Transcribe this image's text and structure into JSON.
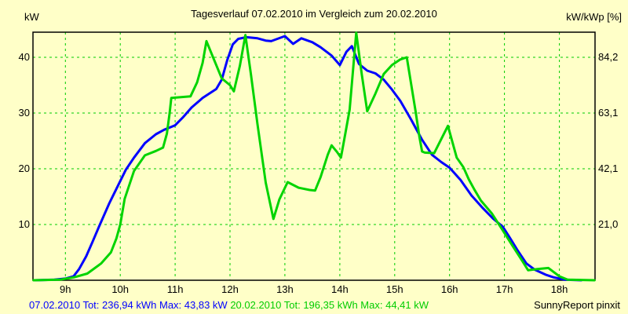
{
  "title": "Tagesverlauf 07.02.2010 im Vergleich zum 20.02.2010",
  "left_axis_unit": "kW",
  "right_axis_unit": "kW/kWp [%]",
  "footer": {
    "series1_stats": "07.02.2010 Tot: 236,94 kWh Max: 43,83 kW",
    "series2_stats": "20.02.2010 Tot: 196,35 kWh Max: 44,41 kW",
    "brand": "SunnyReport pinxit"
  },
  "colors": {
    "background": "#ffffc8",
    "grid_green": "#00cc00",
    "series1_blue": "#0000ff",
    "series2_green": "#00d400",
    "text_black": "#000000",
    "plot_border": "#000000"
  },
  "chart_data": {
    "type": "line",
    "title": "Tagesverlauf 07.02.2010 im Vergleich zum 20.02.2010",
    "xlabel_unit": "h",
    "ylabel_left": "kW",
    "ylabel_right": "kW/kWp [%]",
    "grid": true,
    "legend_position": "footer",
    "x_ticks": [
      "9h",
      "10h",
      "11h",
      "12h",
      "13h",
      "14h",
      "15h",
      "16h",
      "17h",
      "18h"
    ],
    "x_tick_hours": [
      9,
      10,
      11,
      12,
      13,
      14,
      15,
      16,
      17,
      18
    ],
    "left_ticks": [
      10,
      20,
      30,
      40
    ],
    "right_ticks": [
      "21,0",
      "42,1",
      "63,1",
      "84,2"
    ],
    "x_range_hours": [
      8.41,
      18.65
    ],
    "y_range_kw": [
      0,
      44.5
    ],
    "series": [
      {
        "name": "07.02.2010",
        "total_kwh": 236.94,
        "max_kw": 43.83,
        "points": [
          [
            8.45,
            0
          ],
          [
            8.8,
            0.1
          ],
          [
            9.0,
            0.3
          ],
          [
            9.15,
            0.7
          ],
          [
            9.25,
            2.0
          ],
          [
            9.38,
            4.3
          ],
          [
            9.5,
            7.0
          ],
          [
            9.63,
            10.0
          ],
          [
            9.8,
            13.8
          ],
          [
            9.95,
            16.8
          ],
          [
            10.1,
            19.8
          ],
          [
            10.25,
            22.0
          ],
          [
            10.45,
            24.6
          ],
          [
            10.65,
            26.2
          ],
          [
            10.8,
            27.0
          ],
          [
            11.0,
            27.8
          ],
          [
            11.15,
            29.3
          ],
          [
            11.3,
            31.0
          ],
          [
            11.5,
            32.7
          ],
          [
            11.75,
            34.3
          ],
          [
            11.85,
            36.0
          ],
          [
            11.95,
            39.5
          ],
          [
            12.05,
            42.3
          ],
          [
            12.15,
            43.3
          ],
          [
            12.3,
            43.6
          ],
          [
            12.5,
            43.4
          ],
          [
            12.65,
            43.0
          ],
          [
            12.75,
            42.9
          ],
          [
            13.0,
            43.8
          ],
          [
            13.15,
            42.4
          ],
          [
            13.3,
            43.4
          ],
          [
            13.5,
            42.7
          ],
          [
            13.65,
            41.8
          ],
          [
            13.85,
            40.3
          ],
          [
            14.0,
            38.6
          ],
          [
            14.12,
            41.0
          ],
          [
            14.22,
            42.0
          ],
          [
            14.35,
            38.8
          ],
          [
            14.5,
            37.6
          ],
          [
            14.65,
            37.1
          ],
          [
            14.8,
            36.0
          ],
          [
            14.95,
            34.2
          ],
          [
            15.1,
            32.2
          ],
          [
            15.3,
            28.8
          ],
          [
            15.5,
            25.2
          ],
          [
            15.68,
            22.5
          ],
          [
            15.85,
            21.2
          ],
          [
            16.0,
            20.2
          ],
          [
            16.2,
            18.0
          ],
          [
            16.4,
            15.2
          ],
          [
            16.6,
            13.0
          ],
          [
            16.8,
            11.0
          ],
          [
            16.97,
            9.6
          ],
          [
            17.1,
            7.6
          ],
          [
            17.25,
            5.2
          ],
          [
            17.4,
            3.0
          ],
          [
            17.55,
            1.9
          ],
          [
            17.75,
            1.0
          ],
          [
            17.9,
            0.5
          ],
          [
            18.1,
            0.1
          ],
          [
            18.4,
            0
          ]
        ]
      },
      {
        "name": "20.02.2010",
        "total_kwh": 196.35,
        "max_kw": 44.41,
        "points": [
          [
            8.42,
            0
          ],
          [
            8.9,
            0.1
          ],
          [
            9.15,
            0.5
          ],
          [
            9.4,
            1.2
          ],
          [
            9.65,
            3.0
          ],
          [
            9.83,
            5.0
          ],
          [
            9.93,
            7.5
          ],
          [
            10.0,
            10.0
          ],
          [
            10.08,
            14.6
          ],
          [
            10.25,
            19.6
          ],
          [
            10.45,
            22.4
          ],
          [
            10.65,
            23.2
          ],
          [
            10.78,
            23.8
          ],
          [
            10.85,
            26.3
          ],
          [
            10.9,
            30.0
          ],
          [
            10.93,
            32.7
          ],
          [
            11.28,
            33.0
          ],
          [
            11.4,
            35.5
          ],
          [
            11.5,
            39.0
          ],
          [
            11.57,
            42.9
          ],
          [
            11.7,
            39.8
          ],
          [
            11.85,
            36.2
          ],
          [
            12.0,
            35.0
          ],
          [
            12.07,
            33.9
          ],
          [
            12.18,
            38.5
          ],
          [
            12.28,
            44.0
          ],
          [
            12.38,
            37.0
          ],
          [
            12.5,
            28.0
          ],
          [
            12.65,
            17.5
          ],
          [
            12.79,
            11.0
          ],
          [
            12.9,
            14.5
          ],
          [
            13.05,
            17.6
          ],
          [
            13.25,
            16.6
          ],
          [
            13.45,
            16.2
          ],
          [
            13.55,
            16.1
          ],
          [
            13.65,
            18.5
          ],
          [
            13.78,
            22.5
          ],
          [
            13.85,
            24.2
          ],
          [
            13.95,
            23.0
          ],
          [
            14.02,
            22.0
          ],
          [
            14.1,
            26.3
          ],
          [
            14.18,
            30.6
          ],
          [
            14.3,
            44.4
          ],
          [
            14.4,
            37.0
          ],
          [
            14.5,
            30.3
          ],
          [
            14.65,
            33.5
          ],
          [
            14.8,
            37.0
          ],
          [
            14.95,
            38.6
          ],
          [
            15.1,
            39.6
          ],
          [
            15.22,
            40.0
          ],
          [
            15.38,
            30.3
          ],
          [
            15.45,
            25.7
          ],
          [
            15.5,
            23.1
          ],
          [
            15.55,
            22.9
          ],
          [
            15.72,
            22.8
          ],
          [
            15.97,
            27.7
          ],
          [
            16.13,
            22.0
          ],
          [
            16.25,
            20.3
          ],
          [
            16.35,
            18.1
          ],
          [
            16.45,
            16.3
          ],
          [
            16.57,
            14.3
          ],
          [
            16.77,
            12.0
          ],
          [
            16.96,
            9.1
          ],
          [
            17.14,
            6.3
          ],
          [
            17.33,
            3.4
          ],
          [
            17.43,
            1.8
          ],
          [
            17.6,
            2.0
          ],
          [
            17.8,
            2.2
          ],
          [
            18.0,
            0.7
          ],
          [
            18.15,
            0.1
          ],
          [
            18.64,
            0
          ]
        ]
      }
    ]
  }
}
